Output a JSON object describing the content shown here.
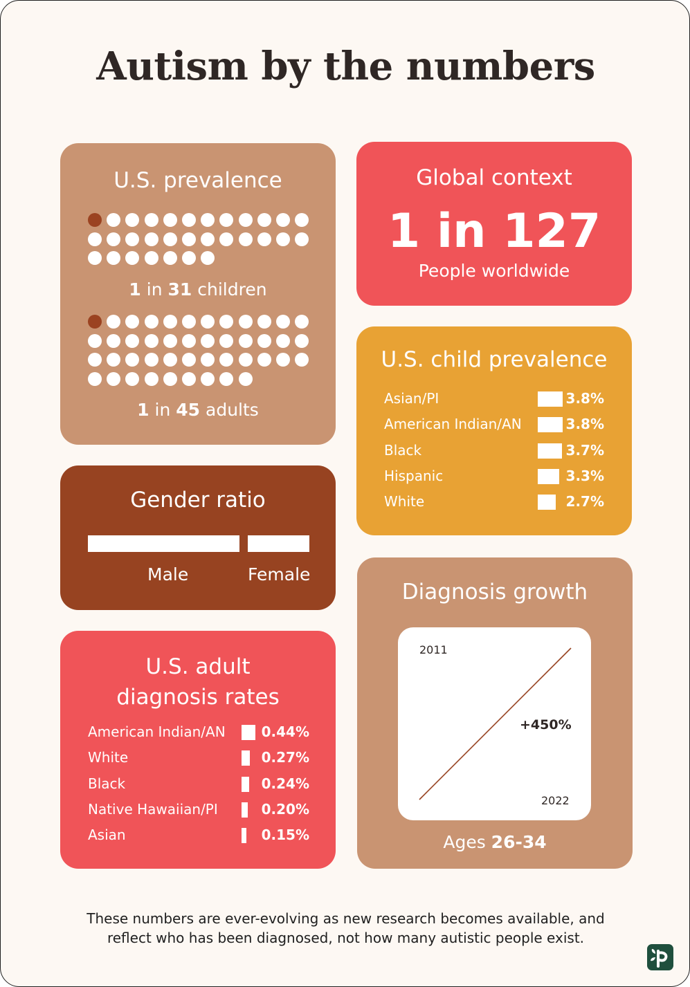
{
  "title": {
    "light": "Autism ",
    "bold": "by the numbers"
  },
  "us_prevalence": {
    "heading": "U.S. prevalence",
    "children": {
      "count": "1",
      "mid": " in ",
      "total": "31",
      "unit": " children",
      "dots": 31,
      "highlighted": 1
    },
    "adults": {
      "count": "1",
      "mid": " in ",
      "total": "45",
      "unit": " adults",
      "dots": 45,
      "highlighted": 1
    }
  },
  "global_context": {
    "heading": "Global context",
    "stat": "1 in 127",
    "sub": "People worldwide"
  },
  "child_prevalence": {
    "heading": "U.S. child prevalence",
    "rows": [
      {
        "label": "Asian/PI",
        "value": "3.8%",
        "pct": 3.8
      },
      {
        "label": "American Indian/AN",
        "value": "3.8%",
        "pct": 3.8
      },
      {
        "label": "Black",
        "value": "3.7%",
        "pct": 3.7
      },
      {
        "label": "Hispanic",
        "value": "3.3%",
        "pct": 3.3
      },
      {
        "label": "White",
        "value": "2.7%",
        "pct": 2.7
      }
    ]
  },
  "gender_ratio": {
    "heading": "Gender ratio",
    "male_label": "Male",
    "female_label": "Female",
    "male_share": 0.71,
    "female_share": 0.29
  },
  "adult_diagnosis": {
    "heading_line1": "U.S. adult",
    "heading_line2": "diagnosis rates",
    "rows": [
      {
        "label": "American Indian/AN",
        "value": "0.44%",
        "pct": 0.44
      },
      {
        "label": "White",
        "value": "0.27%",
        "pct": 0.27
      },
      {
        "label": "Black",
        "value": "0.24%",
        "pct": 0.24
      },
      {
        "label": "Native Hawaiian/PI",
        "value": "0.20%",
        "pct": 0.2
      },
      {
        "label": "Asian",
        "value": "0.15%",
        "pct": 0.15
      }
    ]
  },
  "diagnosis_growth": {
    "heading": "Diagnosis growth",
    "start_label": "2011",
    "end_label": "2022",
    "change": "+450%",
    "caption_prefix": "Ages ",
    "caption_bold": "26-34"
  },
  "footnote": {
    "line1": "These numbers are ever-evolving as new research becomes available, and",
    "line2": "reflect who has been diagnosed, not how many autistic people exist."
  },
  "colors": {
    "background": "#fdf8f3",
    "tan": "#c99472",
    "coral": "#f05458",
    "amber": "#e8a234",
    "rust": "#974321",
    "logo": "#1f4f3d"
  },
  "logo_icon": "brand-logo-icon"
}
